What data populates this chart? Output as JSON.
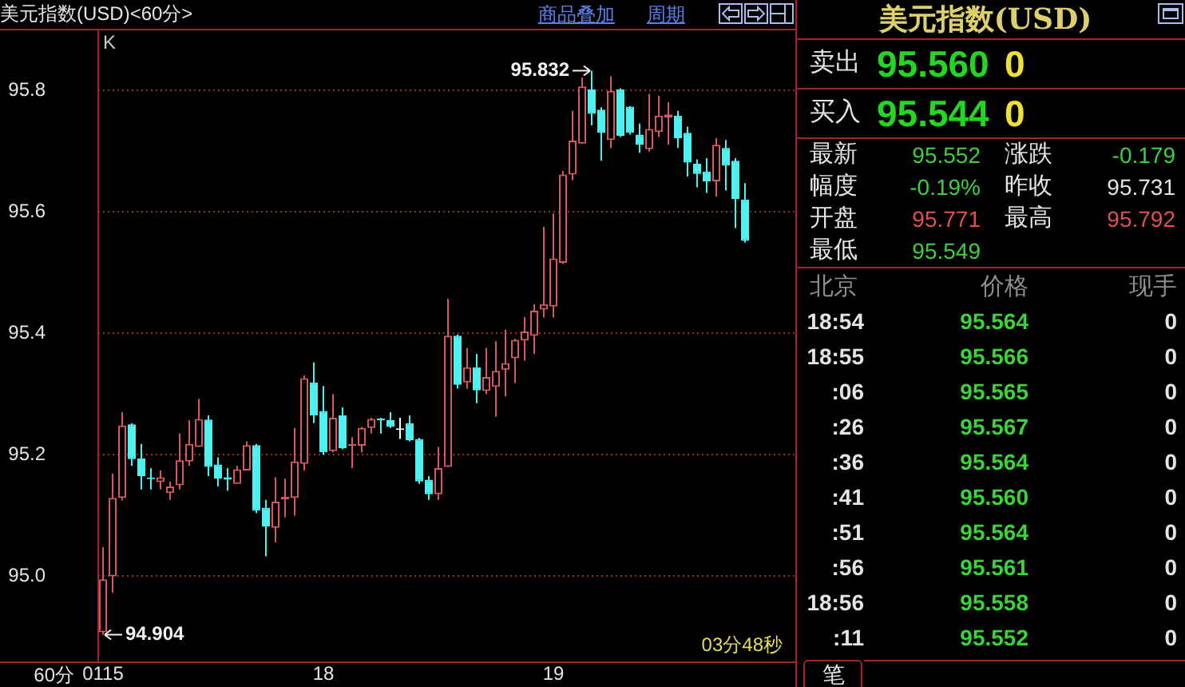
{
  "chart_data": [
    {
      "type": "candlestick",
      "title": "美元指数(USD)<60分>",
      "categories": [
        "0115",
        null,
        null,
        null,
        null,
        null,
        null,
        null,
        null,
        null,
        null,
        null,
        null,
        null,
        null,
        null,
        null,
        null,
        null,
        null,
        null,
        null,
        null,
        "18",
        null,
        null,
        null,
        null,
        null,
        null,
        null,
        null,
        null,
        null,
        null,
        null,
        null,
        null,
        null,
        null,
        null,
        null,
        null,
        null,
        null,
        null,
        null,
        "19",
        null,
        null,
        null,
        null,
        null,
        null,
        null,
        null,
        null,
        null,
        null,
        null,
        null,
        null,
        null,
        null,
        null,
        null,
        null,
        null
      ],
      "ohlc": [
        [
          94.908,
          95.048,
          94.904,
          94.995
        ],
        [
          95.0,
          95.169,
          94.973,
          95.129
        ],
        [
          95.129,
          95.27,
          95.125,
          95.248
        ],
        [
          95.25,
          95.252,
          95.182,
          95.193
        ],
        [
          95.194,
          95.218,
          95.143,
          95.165
        ],
        [
          95.162,
          95.178,
          95.143,
          95.16
        ],
        [
          95.155,
          95.174,
          95.143,
          95.163
        ],
        [
          95.137,
          95.156,
          95.126,
          95.148
        ],
        [
          95.15,
          95.235,
          95.143,
          95.191
        ],
        [
          95.189,
          95.257,
          95.182,
          95.218
        ],
        [
          95.213,
          95.292,
          95.213,
          95.259
        ],
        [
          95.258,
          95.265,
          95.165,
          95.18
        ],
        [
          95.184,
          95.196,
          95.148,
          95.161
        ],
        [
          95.163,
          95.178,
          95.141,
          95.159
        ],
        [
          95.152,
          95.182,
          95.152,
          95.176
        ],
        [
          95.174,
          95.222,
          95.174,
          95.216
        ],
        [
          95.216,
          95.218,
          95.104,
          95.108
        ],
        [
          95.113,
          95.126,
          95.033,
          95.082
        ],
        [
          95.08,
          95.163,
          95.056,
          95.123
        ],
        [
          95.127,
          95.161,
          95.097,
          95.131
        ],
        [
          95.129,
          95.244,
          95.1,
          95.189
        ],
        [
          95.185,
          95.331,
          95.174,
          95.326
        ],
        [
          95.319,
          95.352,
          95.252,
          95.265
        ],
        [
          95.272,
          95.313,
          95.2,
          95.204
        ],
        [
          95.206,
          95.3,
          95.204,
          95.261
        ],
        [
          95.265,
          95.278,
          95.209,
          95.211
        ],
        [
          95.215,
          95.229,
          95.178,
          95.218
        ],
        [
          95.215,
          95.246,
          95.204,
          95.244
        ],
        [
          95.244,
          95.261,
          95.235,
          95.259
        ],
        [
          95.259,
          95.261,
          95.235,
          95.257
        ],
        [
          95.257,
          95.27,
          95.244,
          95.246
        ],
        [
          95.241,
          95.261,
          95.226,
          95.241
        ],
        [
          95.252,
          95.265,
          95.222,
          95.224
        ],
        [
          95.226,
          95.228,
          95.152,
          95.156
        ],
        [
          95.159,
          95.165,
          95.126,
          95.135
        ],
        [
          95.135,
          95.213,
          95.126,
          95.178
        ],
        [
          95.18,
          95.457,
          95.18,
          95.396
        ],
        [
          95.396,
          95.398,
          95.309,
          95.315
        ],
        [
          95.319,
          95.376,
          95.309,
          95.344
        ],
        [
          95.344,
          95.366,
          95.285,
          95.306
        ],
        [
          95.305,
          95.376,
          95.3,
          95.328
        ],
        [
          95.312,
          95.387,
          95.263,
          95.338
        ],
        [
          95.34,
          95.406,
          95.296,
          95.351
        ],
        [
          95.359,
          95.391,
          95.318,
          95.389
        ],
        [
          95.388,
          95.427,
          95.355,
          95.403
        ],
        [
          95.396,
          95.448,
          95.366,
          95.437
        ],
        [
          95.439,
          95.575,
          95.426,
          95.448
        ],
        [
          95.444,
          95.597,
          95.426,
          95.523
        ],
        [
          95.516,
          95.667,
          95.514,
          95.661
        ],
        [
          95.661,
          95.766,
          95.652,
          95.717
        ],
        [
          95.712,
          95.821,
          95.712,
          95.806
        ],
        [
          95.801,
          95.832,
          95.742,
          95.761
        ],
        [
          95.768,
          95.772,
          95.684,
          95.73
        ],
        [
          95.718,
          95.823,
          95.705,
          95.799
        ],
        [
          95.801,
          95.803,
          95.723,
          95.725
        ],
        [
          95.773,
          95.774,
          95.727,
          95.73
        ],
        [
          95.727,
          95.745,
          95.697,
          95.71
        ],
        [
          95.703,
          95.794,
          95.699,
          95.736
        ],
        [
          95.731,
          95.791,
          95.723,
          95.758
        ],
        [
          95.755,
          95.78,
          95.71,
          95.76
        ],
        [
          95.758,
          95.766,
          95.705,
          95.721
        ],
        [
          95.73,
          95.74,
          95.658,
          95.681
        ],
        [
          95.679,
          95.686,
          95.64,
          95.662
        ],
        [
          95.666,
          95.688,
          95.631,
          95.65
        ],
        [
          95.65,
          95.721,
          95.625,
          95.71
        ],
        [
          95.705,
          95.718,
          95.635,
          95.676
        ],
        [
          95.684,
          95.688,
          95.573,
          95.621
        ],
        [
          95.62,
          95.647,
          95.549,
          95.552
        ]
      ],
      "colors": [
        "#d25a5a",
        "#d25a5a",
        "#d25a5a",
        "#50f0f0",
        "#50f0f0",
        "#50f0f0",
        "#d25a5a",
        "#d25a5a",
        "#d25a5a",
        "#d25a5a",
        "#d25a5a",
        "#50f0f0",
        "#50f0f0",
        "#50f0f0",
        "#d25a5a",
        "#d25a5a",
        "#50f0f0",
        "#50f0f0",
        "#d25a5a",
        "#d25a5a",
        "#d25a5a",
        "#d25a5a",
        "#50f0f0",
        "#50f0f0",
        "#d25a5a",
        "#50f0f0",
        "#d25a5a",
        "#d25a5a",
        "#d25a5a",
        "#50f0f0",
        "#50f0f0",
        "#ffffff",
        "#50f0f0",
        "#50f0f0",
        "#50f0f0",
        "#d25a5a",
        "#d25a5a",
        "#50f0f0",
        "#d25a5a",
        "#50f0f0",
        "#d25a5a",
        "#d25a5a",
        "#d25a5a",
        "#d25a5a",
        "#d25a5a",
        "#d25a5a",
        "#d25a5a",
        "#d25a5a",
        "#d25a5a",
        "#d25a5a",
        "#d25a5a",
        "#50f0f0",
        "#50f0f0",
        "#d25a5a",
        "#50f0f0",
        "#50f0f0",
        "#50f0f0",
        "#d25a5a",
        "#d25a5a",
        "#d25a5a",
        "#50f0f0",
        "#50f0f0",
        "#50f0f0",
        "#50f0f0",
        "#d25a5a",
        "#50f0f0",
        "#50f0f0",
        "#50f0f0"
      ],
      "ylim": [
        94.86,
        95.9
      ],
      "yticks": [
        {
          "value": 95,
          "label": "95.0"
        },
        95.2,
        95.4,
        95.6,
        95.8
      ],
      "grid": "y",
      "annotations": [
        "95.832",
        "94.904",
        "K",
        "60分",
        "03分48秒",
        "商品叠加",
        "周期"
      ]
    },
    {
      "type": "other",
      "title": "美元指数(USD)",
      "annotations": [
        "卖出",
        "95.560",
        "0",
        "买入",
        "95.544",
        "0",
        "最新",
        "95.552",
        "涨跌",
        "-0.179",
        "幅度",
        "-0.19%",
        "昨收",
        "95.731",
        "开盘",
        "95.771",
        "最高",
        "95.792",
        "最低",
        "95.549",
        "北京",
        "价格",
        "现手",
        "18:54",
        "95.564",
        "0",
        "18:55",
        "95.566",
        "0",
        ":06",
        "95.565",
        "0",
        ":26",
        "95.567",
        "0",
        ":36",
        "95.564",
        "0",
        ":41",
        "95.560",
        "0",
        ":51",
        "95.564",
        "0",
        ":56",
        "95.561",
        "0",
        "18:56",
        "95.558",
        "0",
        ":11",
        "95.552",
        "0",
        "笔"
      ]
    }
  ]
}
